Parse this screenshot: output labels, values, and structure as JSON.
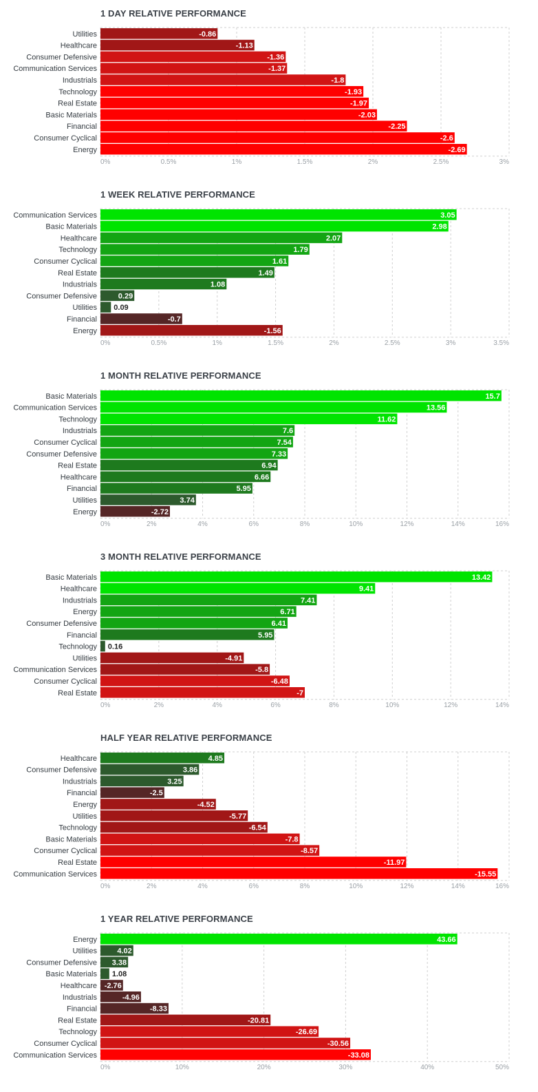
{
  "colors": {
    "green_bright": "#00e400",
    "green_mid": "#13a513",
    "green_dark": "#1e7a1e",
    "green_darkest": "#2d5a2d",
    "red_bright": "#ff0000",
    "red_mid": "#d11414",
    "red_dark": "#a11717",
    "red_darkest": "#552626",
    "grid": "#cfcfcf"
  },
  "chart_data": [
    {
      "type": "bar",
      "title": "1 DAY RELATIVE PERFORMANCE",
      "categories": [
        "Utilities",
        "Healthcare",
        "Consumer Defensive",
        "Communication Services",
        "Industrials",
        "Technology",
        "Real Estate",
        "Basic Materials",
        "Financial",
        "Consumer Cyclical",
        "Energy"
      ],
      "values": [
        -0.86,
        -1.13,
        -1.36,
        -1.37,
        -1.8,
        -1.93,
        -1.97,
        -2.03,
        -2.25,
        -2.6,
        -2.69
      ],
      "value_labels": [
        "-0.86",
        "-1.13",
        "-1.36",
        "-1.37",
        "-1.8",
        "-1.93",
        "-1.97",
        "-2.03",
        "-2.25",
        "-2.6",
        "-2.69"
      ],
      "xlim": [
        0,
        3
      ],
      "ticks": [
        0,
        0.5,
        1,
        1.5,
        2,
        2.5,
        3
      ],
      "tick_labels": [
        "0%",
        "0.5%",
        "1%",
        "1.5%",
        "2%",
        "2.5%",
        "3%"
      ],
      "orientation": "horizontal",
      "grid": true
    },
    {
      "type": "bar",
      "title": "1 WEEK RELATIVE PERFORMANCE",
      "categories": [
        "Communication Services",
        "Basic Materials",
        "Healthcare",
        "Technology",
        "Consumer Cyclical",
        "Real Estate",
        "Industrials",
        "Consumer Defensive",
        "Utilities",
        "Financial",
        "Energy"
      ],
      "values": [
        3.05,
        2.98,
        2.07,
        1.79,
        1.61,
        1.49,
        1.08,
        0.29,
        0.09,
        -0.7,
        -1.56
      ],
      "value_labels": [
        "3.05",
        "2.98",
        "2.07",
        "1.79",
        "1.61",
        "1.49",
        "1.08",
        "0.29",
        "0.09",
        "-0.7",
        "-1.56"
      ],
      "xlim": [
        0,
        3.5
      ],
      "ticks": [
        0,
        0.5,
        1,
        1.5,
        2,
        2.5,
        3,
        3.5
      ],
      "tick_labels": [
        "0%",
        "0.5%",
        "1%",
        "1.5%",
        "2%",
        "2.5%",
        "3%",
        "3.5%"
      ],
      "orientation": "horizontal",
      "grid": true
    },
    {
      "type": "bar",
      "title": "1 MONTH RELATIVE PERFORMANCE",
      "categories": [
        "Basic Materials",
        "Communication Services",
        "Technology",
        "Industrials",
        "Consumer Cyclical",
        "Consumer Defensive",
        "Real Estate",
        "Healthcare",
        "Financial",
        "Utilities",
        "Energy"
      ],
      "values": [
        15.7,
        13.56,
        11.62,
        7.6,
        7.54,
        7.33,
        6.94,
        6.66,
        5.95,
        3.74,
        -2.72
      ],
      "value_labels": [
        "15.7",
        "13.56",
        "11.62",
        "7.6",
        "7.54",
        "7.33",
        "6.94",
        "6.66",
        "5.95",
        "3.74",
        "-2.72"
      ],
      "xlim": [
        0,
        16
      ],
      "ticks": [
        0,
        2,
        4,
        6,
        8,
        10,
        12,
        14,
        16
      ],
      "tick_labels": [
        "0%",
        "2%",
        "4%",
        "6%",
        "8%",
        "10%",
        "12%",
        "14%",
        "16%"
      ],
      "orientation": "horizontal",
      "grid": true
    },
    {
      "type": "bar",
      "title": "3 MONTH RELATIVE PERFORMANCE",
      "categories": [
        "Basic Materials",
        "Healthcare",
        "Industrials",
        "Energy",
        "Consumer Defensive",
        "Financial",
        "Technology",
        "Utilities",
        "Communication Services",
        "Consumer Cyclical",
        "Real Estate"
      ],
      "values": [
        13.42,
        9.41,
        7.41,
        6.71,
        6.41,
        5.95,
        0.16,
        -4.91,
        -5.8,
        -6.48,
        -7
      ],
      "value_labels": [
        "13.42",
        "9.41",
        "7.41",
        "6.71",
        "6.41",
        "5.95",
        "0.16",
        "-4.91",
        "-5.8",
        "-6.48",
        "-7"
      ],
      "xlim": [
        0,
        14
      ],
      "ticks": [
        0,
        2,
        4,
        6,
        8,
        10,
        12,
        14
      ],
      "tick_labels": [
        "0%",
        "2%",
        "4%",
        "6%",
        "8%",
        "10%",
        "12%",
        "14%"
      ],
      "orientation": "horizontal",
      "grid": true
    },
    {
      "type": "bar",
      "title": "HALF YEAR RELATIVE PERFORMANCE",
      "categories": [
        "Healthcare",
        "Consumer Defensive",
        "Industrials",
        "Financial",
        "Energy",
        "Utilities",
        "Technology",
        "Basic Materials",
        "Consumer Cyclical",
        "Real Estate",
        "Communication Services"
      ],
      "values": [
        4.85,
        3.86,
        3.25,
        -2.5,
        -4.52,
        -5.77,
        -6.54,
        -7.8,
        -8.57,
        -11.97,
        -15.55
      ],
      "value_labels": [
        "4.85",
        "3.86",
        "3.25",
        "-2.5",
        "-4.52",
        "-5.77",
        "-6.54",
        "-7.8",
        "-8.57",
        "-11.97",
        "-15.55"
      ],
      "xlim": [
        0,
        16
      ],
      "ticks": [
        0,
        2,
        4,
        6,
        8,
        10,
        12,
        14,
        16
      ],
      "tick_labels": [
        "0%",
        "2%",
        "4%",
        "6%",
        "8%",
        "10%",
        "12%",
        "14%",
        "16%"
      ],
      "orientation": "horizontal",
      "grid": true
    },
    {
      "type": "bar",
      "title": "1 YEAR RELATIVE PERFORMANCE",
      "categories": [
        "Energy",
        "Utilities",
        "Consumer Defensive",
        "Basic Materials",
        "Healthcare",
        "Industrials",
        "Financial",
        "Real Estate",
        "Technology",
        "Consumer Cyclical",
        "Communication Services"
      ],
      "values": [
        43.66,
        4.02,
        3.38,
        1.08,
        -2.76,
        -4.96,
        -8.33,
        -20.81,
        -26.69,
        -30.56,
        -33.08
      ],
      "value_labels": [
        "43.66",
        "4.02",
        "3.38",
        "1.08",
        "-2.76",
        "-4.96",
        "-8.33",
        "-20.81",
        "-26.69",
        "-30.56",
        "-33.08"
      ],
      "xlim": [
        0,
        50
      ],
      "ticks": [
        0,
        10,
        20,
        30,
        40,
        50
      ],
      "tick_labels": [
        "0%",
        "10%",
        "20%",
        "30%",
        "40%",
        "50%"
      ],
      "orientation": "horizontal",
      "grid": true
    }
  ]
}
